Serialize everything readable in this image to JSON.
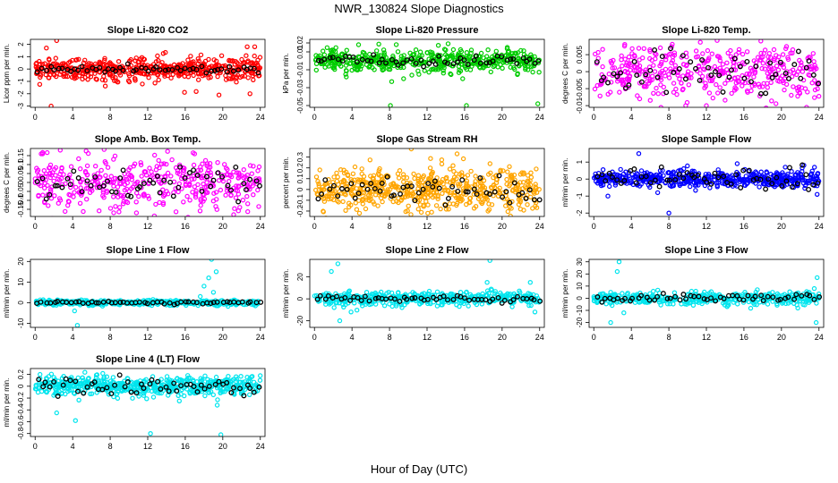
{
  "page": {
    "title": "NWR_130824  Slope Diagnostics",
    "xlabel": "Hour of Day (UTC)"
  },
  "chart_data": [
    {
      "type": "scatter",
      "title": "Slope Li-820 CO2",
      "ylabel": "Licor ppm per min.",
      "color": "#ff0000",
      "xlim": [
        -0.5,
        24.5
      ],
      "ylim": [
        -3.1,
        2.4
      ],
      "yticks": [
        -3,
        -2,
        -1,
        0,
        1,
        2
      ],
      "xticks": [
        0,
        4,
        8,
        12,
        16,
        20,
        24
      ],
      "n": 520,
      "spread": 0.45,
      "black_spread": 0.15,
      "outliers": [
        [
          1.2,
          1.7
        ],
        [
          2.3,
          2.3
        ],
        [
          1.7,
          -3.0
        ],
        [
          19.6,
          -2.1
        ],
        [
          22.6,
          1.8
        ],
        [
          23.4,
          1.8
        ],
        [
          22.9,
          -2.0
        ]
      ],
      "series": [
        {
          "name": "colored"
        },
        {
          "name": "black"
        }
      ]
    },
    {
      "type": "scatter",
      "title": "Slope Li-820 Pressure",
      "ylabel": "kPa per min.",
      "color": "#00cc00",
      "xlim": [
        -0.5,
        24.5
      ],
      "ylim": [
        -0.052,
        0.024
      ],
      "yticks": [
        -0.05,
        -0.03,
        -0.01,
        0.01,
        0.02
      ],
      "xticks": [
        0,
        4,
        8,
        12,
        16,
        20,
        24
      ],
      "n": 480,
      "spread": 0.006,
      "black_spread": 0.003,
      "outliers": [
        [
          4.7,
          0.018
        ],
        [
          8.1,
          -0.05
        ],
        [
          16.2,
          -0.05
        ],
        [
          23.8,
          -0.048
        ],
        [
          9.5,
          -0.02
        ],
        [
          15.8,
          -0.02
        ]
      ],
      "series": [
        {
          "name": "colored"
        },
        {
          "name": "black"
        }
      ]
    },
    {
      "type": "scatter",
      "title": "Slope Li-820 Temp.",
      "ylabel": "degrees C per min.",
      "color": "#ff00ff",
      "xlim": [
        -0.5,
        24.5
      ],
      "ylim": [
        -0.0105,
        0.0095
      ],
      "yticks": [
        -0.01,
        -0.005,
        0,
        0.005
      ],
      "xticks": [
        0,
        4,
        8,
        12,
        16,
        20,
        24
      ],
      "n": 420,
      "spread": 0.004,
      "black_spread": 0.003,
      "outliers": [
        [
          3.3,
          0.008
        ],
        [
          17.8,
          0.009
        ],
        [
          9.8,
          -0.01
        ],
        [
          12.0,
          -0.01
        ]
      ],
      "series": [
        {
          "name": "colored"
        },
        {
          "name": "black"
        }
      ]
    },
    {
      "type": "scatter",
      "title": "Slope Amb. Box Temp.",
      "ylabel": "degrees C per min.",
      "color": "#ff00ff",
      "xlim": [
        -0.5,
        24.5
      ],
      "ylim": [
        -0.19,
        0.19
      ],
      "yticks": [
        -0.15,
        -0.1,
        -0.05,
        0,
        0.05,
        0.1,
        0.15
      ],
      "xticks": [
        0,
        4,
        8,
        12,
        16,
        20,
        24
      ],
      "n": 420,
      "spread": 0.07,
      "black_spread": 0.05,
      "outliers": [
        [
          0.8,
          0.16
        ],
        [
          10.8,
          -0.17
        ],
        [
          17.0,
          0.16
        ]
      ],
      "series": [
        {
          "name": "colored"
        },
        {
          "name": "black"
        }
      ]
    },
    {
      "type": "scatter",
      "title": "Slope Gas Stream RH",
      "ylabel": "percent per min.",
      "color": "#ffa500",
      "xlim": [
        -0.5,
        24.5
      ],
      "ylim": [
        -0.25,
        0.38
      ],
      "yticks": [
        -0.2,
        -0.1,
        0,
        0.1,
        0.2,
        0.3
      ],
      "xticks": [
        0,
        4,
        8,
        12,
        16,
        20,
        24
      ],
      "n": 560,
      "spread": 0.1,
      "black_spread": 0.05,
      "outliers": [
        [
          15.2,
          0.33
        ],
        [
          4.8,
          -0.22
        ],
        [
          18.5,
          -0.2
        ]
      ],
      "series": [
        {
          "name": "colored"
        },
        {
          "name": "black"
        }
      ]
    },
    {
      "type": "scatter",
      "title": "Slope Sample Flow",
      "ylabel": "ml/min per min.",
      "color": "#0000ff",
      "xlim": [
        -0.5,
        24.5
      ],
      "ylim": [
        -2.2,
        1.8
      ],
      "yticks": [
        -2,
        -1,
        0,
        1
      ],
      "xticks": [
        0,
        4,
        8,
        12,
        16,
        20,
        24
      ],
      "n": 500,
      "spread": 0.25,
      "black_spread": 0.35,
      "outliers": [
        [
          4.8,
          1.5
        ],
        [
          8.0,
          -2.0
        ],
        [
          1.5,
          -1.0
        ],
        [
          23.8,
          -0.9
        ]
      ],
      "series": [
        {
          "name": "colored"
        },
        {
          "name": "black"
        }
      ]
    },
    {
      "type": "scatter",
      "title": "Slope Line 1 Flow",
      "ylabel": "ml/min per min.",
      "color": "#00e5ee",
      "xlim": [
        -0.5,
        24.5
      ],
      "ylim": [
        -12,
        21
      ],
      "yticks": [
        -10,
        0,
        10,
        20
      ],
      "xticks": [
        0,
        4,
        8,
        12,
        16,
        20,
        24
      ],
      "n": 460,
      "spread": 0.6,
      "black_spread": 0.3,
      "outliers": [
        [
          4.5,
          -11
        ],
        [
          4.2,
          -4
        ],
        [
          18.0,
          8
        ],
        [
          18.5,
          12
        ],
        [
          18.8,
          21
        ],
        [
          19.3,
          15
        ],
        [
          19.0,
          5
        ],
        [
          17.6,
          3
        ]
      ],
      "series": [
        {
          "name": "colored"
        },
        {
          "name": "black"
        }
      ]
    },
    {
      "type": "scatter",
      "title": "Slope Line 2 Flow",
      "ylabel": "ml/min per min.",
      "color": "#00e5ee",
      "xlim": [
        -0.5,
        24.5
      ],
      "ylim": [
        -26,
        36
      ],
      "yticks": [
        -20,
        0,
        20
      ],
      "xticks": [
        0,
        4,
        8,
        12,
        16,
        20,
        24
      ],
      "n": 460,
      "spread": 3,
      "black_spread": 1.5,
      "outliers": [
        [
          2.5,
          32
        ],
        [
          1.8,
          25
        ],
        [
          2.7,
          -20
        ],
        [
          3.9,
          -12
        ],
        [
          18.7,
          35
        ],
        [
          18.4,
          15
        ],
        [
          18.9,
          8
        ],
        [
          23.0,
          15
        ],
        [
          23.5,
          -12
        ],
        [
          2.1,
          -8
        ]
      ],
      "series": [
        {
          "name": "colored"
        },
        {
          "name": "black"
        }
      ]
    },
    {
      "type": "scatter",
      "title": "Slope Line 3 Flow",
      "ylabel": "ml/min per min.",
      "color": "#00e5ee",
      "xlim": [
        -0.5,
        24.5
      ],
      "ylim": [
        -24,
        32
      ],
      "yticks": [
        -20,
        -10,
        0,
        10,
        20,
        30
      ],
      "xticks": [
        0,
        4,
        8,
        12,
        16,
        20,
        24
      ],
      "n": 440,
      "spread": 2.5,
      "black_spread": 1.5,
      "outliers": [
        [
          2.7,
          30
        ],
        [
          2.5,
          22
        ],
        [
          1.8,
          -20
        ],
        [
          3.2,
          -12
        ],
        [
          23.7,
          -20
        ],
        [
          23.8,
          17
        ],
        [
          23.5,
          8
        ]
      ],
      "series": [
        {
          "name": "colored"
        },
        {
          "name": "black"
        }
      ]
    },
    {
      "type": "scatter",
      "title": "Slope Line 4 (LT) Flow",
      "ylabel": "ml/min per min.",
      "color": "#00e5ee",
      "xlim": [
        -0.5,
        24.5
      ],
      "ylim": [
        -0.85,
        0.3
      ],
      "yticks": [
        -0.8,
        -0.6,
        -0.4,
        -0.2,
        0,
        0.2
      ],
      "xticks": [
        0,
        4,
        8,
        12,
        16,
        20,
        24
      ],
      "n": 560,
      "spread": 0.08,
      "black_spread": 0.07,
      "outliers": [
        [
          2.3,
          -0.45
        ],
        [
          4.3,
          -0.58
        ],
        [
          12.3,
          -0.8
        ],
        [
          19.8,
          -0.82
        ],
        [
          19.4,
          -0.32
        ]
      ],
      "series": [
        {
          "name": "colored"
        },
        {
          "name": "black"
        }
      ]
    }
  ]
}
